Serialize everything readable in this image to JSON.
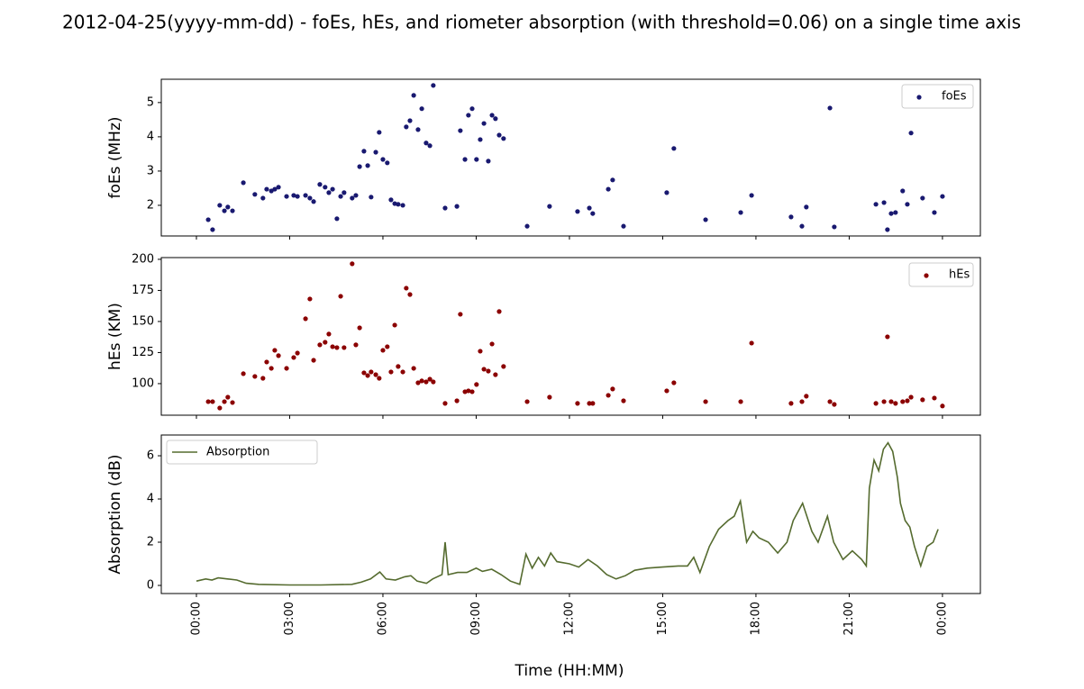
{
  "title": "2012-04-25(yyyy-mm-dd) - foEs, hEs, and riometer absorption (with threshold=0.06) on a single time axis",
  "x_label": "Time (HH:MM)",
  "chart_data": [
    {
      "type": "scatter",
      "y_label": "foEs (MHz)",
      "legend": "upper right",
      "xlim": [
        -1.13,
        25.22
      ],
      "ylim": [
        1.105,
        5.68
      ],
      "yticks": [
        2,
        3,
        4,
        5
      ],
      "series": [
        {
          "name": "foEs",
          "color": "#191970",
          "x": [
            0.38,
            0.52,
            0.75,
            0.9,
            1.01,
            1.16,
            1.51,
            1.88,
            2.14,
            2.26,
            2.41,
            2.52,
            2.64,
            2.9,
            3.13,
            3.25,
            3.51,
            3.65,
            3.77,
            3.97,
            4.14,
            4.26,
            4.38,
            4.52,
            4.64,
            4.75,
            5.01,
            5.13,
            5.25,
            5.39,
            5.51,
            5.62,
            5.77,
            5.88,
            6.0,
            6.14,
            6.26,
            6.38,
            6.49,
            6.64,
            6.75,
            6.87,
            6.99,
            7.13,
            7.25,
            7.39,
            7.51,
            7.62,
            8.0,
            8.38,
            8.49,
            8.64,
            8.75,
            8.87,
            9.01,
            9.13,
            9.25,
            9.39,
            9.51,
            9.62,
            9.74,
            9.88,
            10.64,
            11.36,
            12.26,
            12.64,
            12.75,
            13.25,
            13.39,
            13.74,
            15.13,
            15.36,
            16.38,
            17.51,
            17.86,
            19.13,
            19.48,
            19.62,
            20.38,
            20.52,
            21.86,
            22.12,
            22.23,
            22.35,
            22.49,
            22.72,
            22.87,
            22.99,
            23.36,
            23.74,
            24.0
          ],
          "values": [
            1.58,
            1.29,
            2.0,
            1.84,
            1.95,
            1.84,
            2.66,
            2.32,
            2.21,
            2.47,
            2.42,
            2.47,
            2.53,
            2.26,
            2.29,
            2.26,
            2.29,
            2.21,
            2.11,
            2.61,
            2.53,
            2.37,
            2.47,
            1.61,
            2.26,
            2.37,
            2.21,
            2.29,
            3.13,
            3.58,
            3.16,
            2.24,
            3.55,
            4.13,
            3.34,
            3.24,
            2.16,
            2.05,
            2.03,
            2.0,
            4.29,
            4.47,
            5.21,
            4.21,
            4.82,
            3.82,
            3.74,
            5.5,
            1.92,
            1.97,
            4.18,
            3.34,
            4.63,
            4.82,
            3.34,
            3.92,
            4.39,
            3.29,
            4.63,
            4.53,
            4.05,
            3.95,
            1.39,
            1.97,
            1.82,
            1.92,
            1.76,
            2.47,
            2.74,
            1.39,
            2.37,
            3.66,
            1.58,
            1.79,
            2.29,
            1.66,
            1.39,
            1.95,
            4.84,
            1.37,
            2.03,
            2.08,
            1.29,
            1.76,
            1.79,
            2.42,
            2.03,
            4.11,
            2.21,
            1.79,
            2.26
          ]
        }
      ]
    },
    {
      "type": "scatter",
      "y_label": "hEs (KM)",
      "legend": "upper right",
      "xlim": [
        -1.13,
        25.22
      ],
      "ylim": [
        74.6,
        201.4
      ],
      "yticks": [
        100,
        125,
        150,
        175,
        200
      ],
      "series": [
        {
          "name": "hEs",
          "color": "#8b0000",
          "x": [
            0.38,
            0.52,
            0.75,
            0.9,
            1.01,
            1.16,
            1.51,
            1.88,
            2.14,
            2.26,
            2.41,
            2.52,
            2.64,
            2.9,
            3.13,
            3.25,
            3.51,
            3.65,
            3.77,
            3.97,
            4.14,
            4.26,
            4.38,
            4.52,
            4.64,
            4.75,
            5.01,
            5.13,
            5.25,
            5.39,
            5.51,
            5.62,
            5.77,
            5.88,
            6.0,
            6.14,
            6.26,
            6.38,
            6.49,
            6.64,
            6.75,
            6.87,
            6.99,
            7.13,
            7.25,
            7.39,
            7.51,
            7.62,
            8.0,
            8.38,
            8.49,
            8.64,
            8.75,
            8.87,
            9.01,
            9.13,
            9.25,
            9.39,
            9.51,
            9.62,
            9.74,
            9.88,
            10.64,
            11.36,
            12.26,
            12.64,
            12.75,
            13.25,
            13.39,
            13.74,
            15.13,
            15.36,
            16.38,
            17.51,
            17.86,
            19.13,
            19.48,
            19.62,
            20.38,
            20.52,
            21.86,
            22.12,
            22.23,
            22.35,
            22.49,
            22.72,
            22.87,
            22.99,
            23.36,
            23.74,
            24.0
          ],
          "values": [
            85.5,
            85.5,
            80.4,
            85.5,
            89.1,
            84.8,
            108,
            105.8,
            104.3,
            117.4,
            112.3,
            126.8,
            122.5,
            112.3,
            121,
            124.6,
            152.2,
            168.1,
            118.8,
            131.2,
            133.3,
            139.9,
            129.7,
            129,
            170.3,
            129,
            196.4,
            131.2,
            144.9,
            108.7,
            106.5,
            109.4,
            107.2,
            104.3,
            126.8,
            129.7,
            109.4,
            147.1,
            113.8,
            109.4,
            176.8,
            171.7,
            112.3,
            100.7,
            102.2,
            101.4,
            103.6,
            101.4,
            84.1,
            86.2,
            155.8,
            93.5,
            94.2,
            93.5,
            99.3,
            126.1,
            111.6,
            110.1,
            131.9,
            107.2,
            158,
            113.8,
            85.5,
            89.1,
            84.1,
            84.1,
            84.1,
            90.6,
            95.7,
            86.2,
            94.2,
            100.7,
            85.5,
            85.5,
            132.6,
            84.1,
            85.5,
            89.9,
            85.5,
            83.3,
            84.1,
            85.5,
            137.7,
            85.5,
            84.1,
            85.5,
            86.2,
            89.1,
            87,
            88.4,
            82
          ]
        }
      ]
    },
    {
      "type": "line",
      "y_label": "Absorption (dB)",
      "legend": "upper left",
      "xlim": [
        -1.13,
        25.22
      ],
      "ylim": [
        -0.375,
        6.96
      ],
      "yticks": [
        0,
        2,
        4,
        6
      ],
      "xticks": [
        {
          "value": 0,
          "label": "00:00"
        },
        {
          "value": 3,
          "label": "03:00"
        },
        {
          "value": 6,
          "label": "06:00"
        },
        {
          "value": 9,
          "label": "09:00"
        },
        {
          "value": 12,
          "label": "12:00"
        },
        {
          "value": 15,
          "label": "15:00"
        },
        {
          "value": 18,
          "label": "18:00"
        },
        {
          "value": 21,
          "label": "21:00"
        },
        {
          "value": 24,
          "label": "00:00"
        }
      ],
      "series": [
        {
          "name": "Absorption",
          "color": "#556b2f",
          "x": [
            0.0,
            0.3,
            0.5,
            0.7,
            1.0,
            1.3,
            1.6,
            2.0,
            3.0,
            4.0,
            5.0,
            5.3,
            5.6,
            5.9,
            6.1,
            6.4,
            6.7,
            6.9,
            7.1,
            7.4,
            7.6,
            7.9,
            8.0,
            8.1,
            8.4,
            8.7,
            9.0,
            9.2,
            9.5,
            9.8,
            10.1,
            10.4,
            10.6,
            10.8,
            11.0,
            11.2,
            11.4,
            11.6,
            12.0,
            12.3,
            12.6,
            12.9,
            13.2,
            13.5,
            13.8,
            14.1,
            14.5,
            15.0,
            15.5,
            15.8,
            16.0,
            16.2,
            16.5,
            16.8,
            17.1,
            17.3,
            17.5,
            17.7,
            17.9,
            18.1,
            18.4,
            18.7,
            19.0,
            19.2,
            19.5,
            19.8,
            20.0,
            20.3,
            20.5,
            20.8,
            21.1,
            21.4,
            21.55,
            21.65,
            21.8,
            21.95,
            22.1,
            22.25,
            22.4,
            22.55,
            22.65,
            22.8,
            22.95,
            23.1,
            23.3,
            23.5,
            23.7,
            23.86
          ],
          "values": [
            0.2,
            0.3,
            0.25,
            0.35,
            0.3,
            0.25,
            0.1,
            0.05,
            0.02,
            0.02,
            0.05,
            0.15,
            0.3,
            0.62,
            0.3,
            0.25,
            0.4,
            0.45,
            0.2,
            0.1,
            0.3,
            0.5,
            2.0,
            0.5,
            0.6,
            0.6,
            0.8,
            0.65,
            0.75,
            0.5,
            0.2,
            0.05,
            1.45,
            0.8,
            1.3,
            0.9,
            1.5,
            1.1,
            1.0,
            0.85,
            1.2,
            0.9,
            0.5,
            0.3,
            0.45,
            0.7,
            0.8,
            0.85,
            0.9,
            0.9,
            1.3,
            0.6,
            1.8,
            2.6,
            3.0,
            3.2,
            3.9,
            2.0,
            2.5,
            2.2,
            2.0,
            1.5,
            2.0,
            3.0,
            3.8,
            2.5,
            2.0,
            3.2,
            2.0,
            1.2,
            1.6,
            1.2,
            0.9,
            4.5,
            5.8,
            5.3,
            6.3,
            6.6,
            6.2,
            5.0,
            3.8,
            3.0,
            2.7,
            1.8,
            0.9,
            1.8,
            2.0,
            2.6
          ]
        }
      ]
    }
  ]
}
